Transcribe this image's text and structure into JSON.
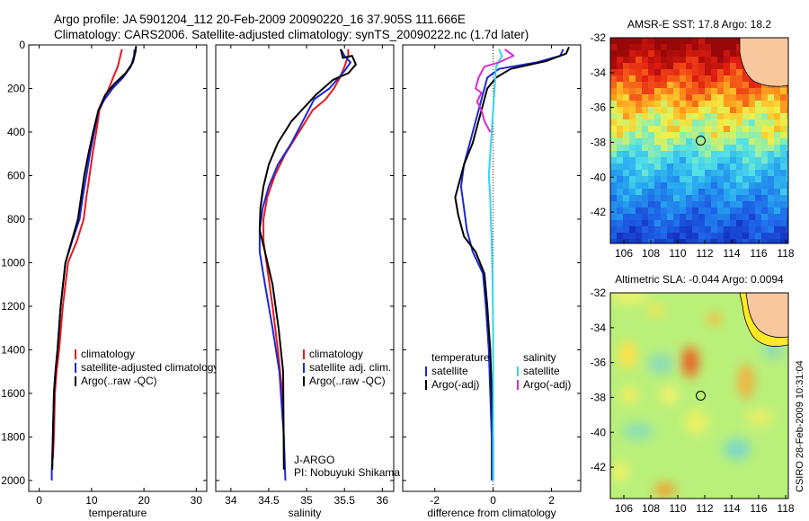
{
  "header": {
    "line1": "Argo profile: JA 5901204_112 20-Feb-2009 20090220_16 37.905S 111.666E",
    "line2": "Climatology: CARS2006. Satellite-adjusted climatology: synTS_20090222.nc (1.7d later)"
  },
  "side_label": "CSIRO 28-Feb-2009 10:31:04",
  "colors": {
    "climatology": "#e8191e",
    "satellite": "#1c27d8",
    "argo": "#000000",
    "sat_diff": "#33d6e6",
    "argo_adj": "#d52ad6"
  },
  "chart_data": [
    {
      "type": "line",
      "id": "temperature",
      "xlabel": "temperature",
      "ylabel": "",
      "xlim": [
        -2,
        32
      ],
      "ylim": [
        2050,
        0
      ],
      "xticks": [
        0,
        10,
        20,
        30
      ],
      "yticks": [
        0,
        200,
        400,
        600,
        800,
        1000,
        1200,
        1400,
        1600,
        1800,
        2000
      ],
      "legend": [
        "climatology",
        "satellite-adjusted climatology",
        "Argo(..raw -QC)"
      ],
      "series": [
        {
          "name": "climatology",
          "color": "#e8191e",
          "x": [
            15.8,
            15.5,
            15.0,
            14.1,
            13.3,
            12.4,
            11.5,
            10.9,
            10.2,
            9.6,
            9.0,
            8.5,
            7.2,
            5.5,
            4.5,
            3.8,
            3.3,
            3.0,
            2.8,
            2.6
          ],
          "y": [
            20,
            50,
            100,
            150,
            200,
            250,
            300,
            400,
            500,
            600,
            700,
            800,
            900,
            1000,
            1200,
            1400,
            1500,
            1600,
            1800,
            1900
          ]
        },
        {
          "name": "satellite-adjusted climatology",
          "color": "#1c27d8",
          "x": [
            18.2,
            18.1,
            17.5,
            16.0,
            14.0,
            12.5,
            11.3,
            10.5,
            9.7,
            9.0,
            8.3,
            7.7,
            6.3,
            5.0,
            4.1,
            3.5,
            3.1,
            2.8,
            2.6,
            2.4,
            2.4
          ],
          "y": [
            20,
            50,
            100,
            150,
            200,
            250,
            300,
            400,
            500,
            600,
            700,
            800,
            900,
            1000,
            1200,
            1400,
            1500,
            1600,
            1800,
            1950,
            2000
          ]
        },
        {
          "name": "Argo(..raw -QC)",
          "color": "#000000",
          "x": [
            18.5,
            18.4,
            17.9,
            16.5,
            14.3,
            12.6,
            11.3,
            10.3,
            9.4,
            8.6,
            8.0,
            7.4,
            6.2,
            5.0,
            4.1,
            3.5,
            3.1,
            2.8,
            2.6,
            2.5
          ],
          "y": [
            5,
            30,
            80,
            130,
            180,
            230,
            300,
            400,
            500,
            600,
            700,
            800,
            900,
            1000,
            1200,
            1400,
            1500,
            1600,
            1800,
            1950
          ]
        }
      ]
    },
    {
      "type": "line",
      "id": "salinity",
      "xlabel": "salinity",
      "ylabel": "",
      "xlim": [
        33.8,
        36.15
      ],
      "ylim": [
        2050,
        0
      ],
      "xticks": [
        34,
        34.5,
        35,
        35.5,
        36
      ],
      "yticks": [
        0,
        200,
        400,
        600,
        800,
        1000,
        1200,
        1400,
        1600,
        1800,
        2000
      ],
      "legend": [
        "climatology",
        "satellite adj. clim.",
        "Argo(..raw -QC)"
      ],
      "annotation": [
        "J-ARGO",
        "PI: Nobuyuki Shikama"
      ],
      "series": [
        {
          "name": "climatology",
          "color": "#e8191e",
          "x": [
            35.55,
            35.55,
            35.5,
            35.44,
            35.36,
            35.25,
            35.08,
            34.9,
            34.72,
            34.58,
            34.48,
            34.43,
            34.43,
            34.47,
            34.55,
            34.62,
            34.68,
            34.7
          ],
          "y": [
            20,
            50,
            100,
            150,
            200,
            250,
            300,
            400,
            500,
            600,
            700,
            800,
            900,
            1000,
            1200,
            1400,
            1600,
            1800
          ]
        },
        {
          "name": "satellite adj. clim.",
          "color": "#1c27d8",
          "x": [
            35.45,
            35.5,
            35.58,
            35.5,
            35.4,
            35.3,
            35.1,
            34.95,
            34.8,
            34.62,
            34.5,
            34.42,
            34.38,
            34.38,
            34.45,
            34.55,
            34.64,
            34.7,
            34.72
          ],
          "y": [
            20,
            50,
            80,
            120,
            160,
            200,
            250,
            350,
            450,
            550,
            650,
            750,
            850,
            950,
            1100,
            1300,
            1500,
            1800,
            2000
          ]
        },
        {
          "name": "Argo(..raw -QC)",
          "color": "#000000",
          "x": [
            35.45,
            35.48,
            35.6,
            35.65,
            35.55,
            35.35,
            35.12,
            34.8,
            34.62,
            34.5,
            34.43,
            34.39,
            34.38,
            34.45,
            34.55,
            34.63,
            34.69,
            34.7
          ],
          "y": [
            20,
            60,
            50,
            90,
            130,
            160,
            230,
            350,
            450,
            550,
            650,
            750,
            850,
            950,
            1100,
            1300,
            1500,
            1950
          ]
        }
      ]
    },
    {
      "type": "line",
      "id": "difference",
      "xlabel": "difference from climatology",
      "ylabel": "",
      "xlim": [
        -3.1,
        3.0
      ],
      "ylim": [
        2050,
        0
      ],
      "xticks": [
        -2,
        0,
        2
      ],
      "yticks": [
        0,
        200,
        400,
        600,
        800,
        1000,
        1200,
        1400,
        1600,
        1800,
        2000
      ],
      "legend_left": {
        "title": "temperature",
        "items": [
          "satellite",
          "Argo(-adj)"
        ]
      },
      "legend_right": {
        "title": "salinity",
        "items": [
          "satellite",
          "Argo(-adj)"
        ]
      },
      "series": [
        {
          "name": "temperature satellite",
          "color": "#1c27d8",
          "x": [
            2.4,
            2.3,
            1.5,
            0.2,
            -0.2,
            -0.3,
            -0.5,
            -0.8,
            -1.0,
            -1.1,
            -1.0,
            -0.9,
            -0.7,
            -0.35,
            -0.25,
            -0.15,
            -0.1,
            -0.05,
            -0.05
          ],
          "y": [
            20,
            50,
            80,
            110,
            150,
            200,
            300,
            450,
            550,
            650,
            750,
            850,
            950,
            1050,
            1200,
            1400,
            1600,
            1800,
            2000
          ]
        },
        {
          "name": "temperature Argo(-adj)",
          "color": "#000000",
          "x": [
            2.6,
            2.5,
            1.8,
            0.6,
            0.1,
            -0.2,
            -0.4,
            -0.7,
            -1.0,
            -1.3,
            -1.2,
            -1.0,
            -0.6,
            -0.3,
            -0.2,
            -0.1,
            -0.05,
            0,
            0
          ],
          "y": [
            10,
            40,
            75,
            110,
            150,
            200,
            300,
            450,
            550,
            700,
            780,
            880,
            950,
            1050,
            1200,
            1400,
            1600,
            1800,
            2000
          ]
        },
        {
          "name": "salinity satellite",
          "color": "#33d6e6",
          "x": [
            0.2,
            0.3,
            0.1,
            0.05,
            0.0,
            -0.05,
            -0.1,
            -0.15,
            -0.1,
            -0.08,
            -0.05,
            -0.03,
            -0.02,
            0.0,
            0.0,
            0.0,
            0.0
          ],
          "y": [
            20,
            50,
            100,
            200,
            300,
            400,
            500,
            600,
            700,
            800,
            900,
            1000,
            1100,
            1300,
            1500,
            1800,
            2000
          ]
        },
        {
          "name": "salinity Argo(-adj)",
          "color": "#d52ad6",
          "x": [
            0.4,
            0.7,
            0.2,
            -0.3,
            -0.5,
            -0.6,
            -0.4,
            -0.55,
            -0.4,
            -0.3,
            -0.1
          ],
          "y": [
            20,
            50,
            80,
            100,
            150,
            200,
            220,
            260,
            300,
            350,
            400
          ]
        }
      ]
    },
    {
      "type": "heatmap",
      "id": "sst-map",
      "title": "AMSR-E SST: 17.8 Argo: 18.2",
      "xlim": [
        105,
        118.2
      ],
      "ylim": [
        -43.8,
        -32
      ],
      "xticks": [
        106,
        108,
        110,
        112,
        114,
        116,
        118
      ],
      "yticks": [
        -32,
        -34,
        -36,
        -38,
        -40,
        -42
      ],
      "marker": {
        "x": 111.7,
        "y": -37.9
      }
    },
    {
      "type": "heatmap",
      "id": "sla-map",
      "title": "Altimetric SLA: -0.044 Argo: 0.0094",
      "xlim": [
        105,
        118.2
      ],
      "ylim": [
        -43.8,
        -32
      ],
      "xticks": [
        106,
        108,
        110,
        112,
        114,
        116,
        118
      ],
      "yticks": [
        -32,
        -34,
        -36,
        -38,
        -40,
        -42
      ],
      "marker": {
        "x": 111.7,
        "y": -37.9
      }
    }
  ]
}
